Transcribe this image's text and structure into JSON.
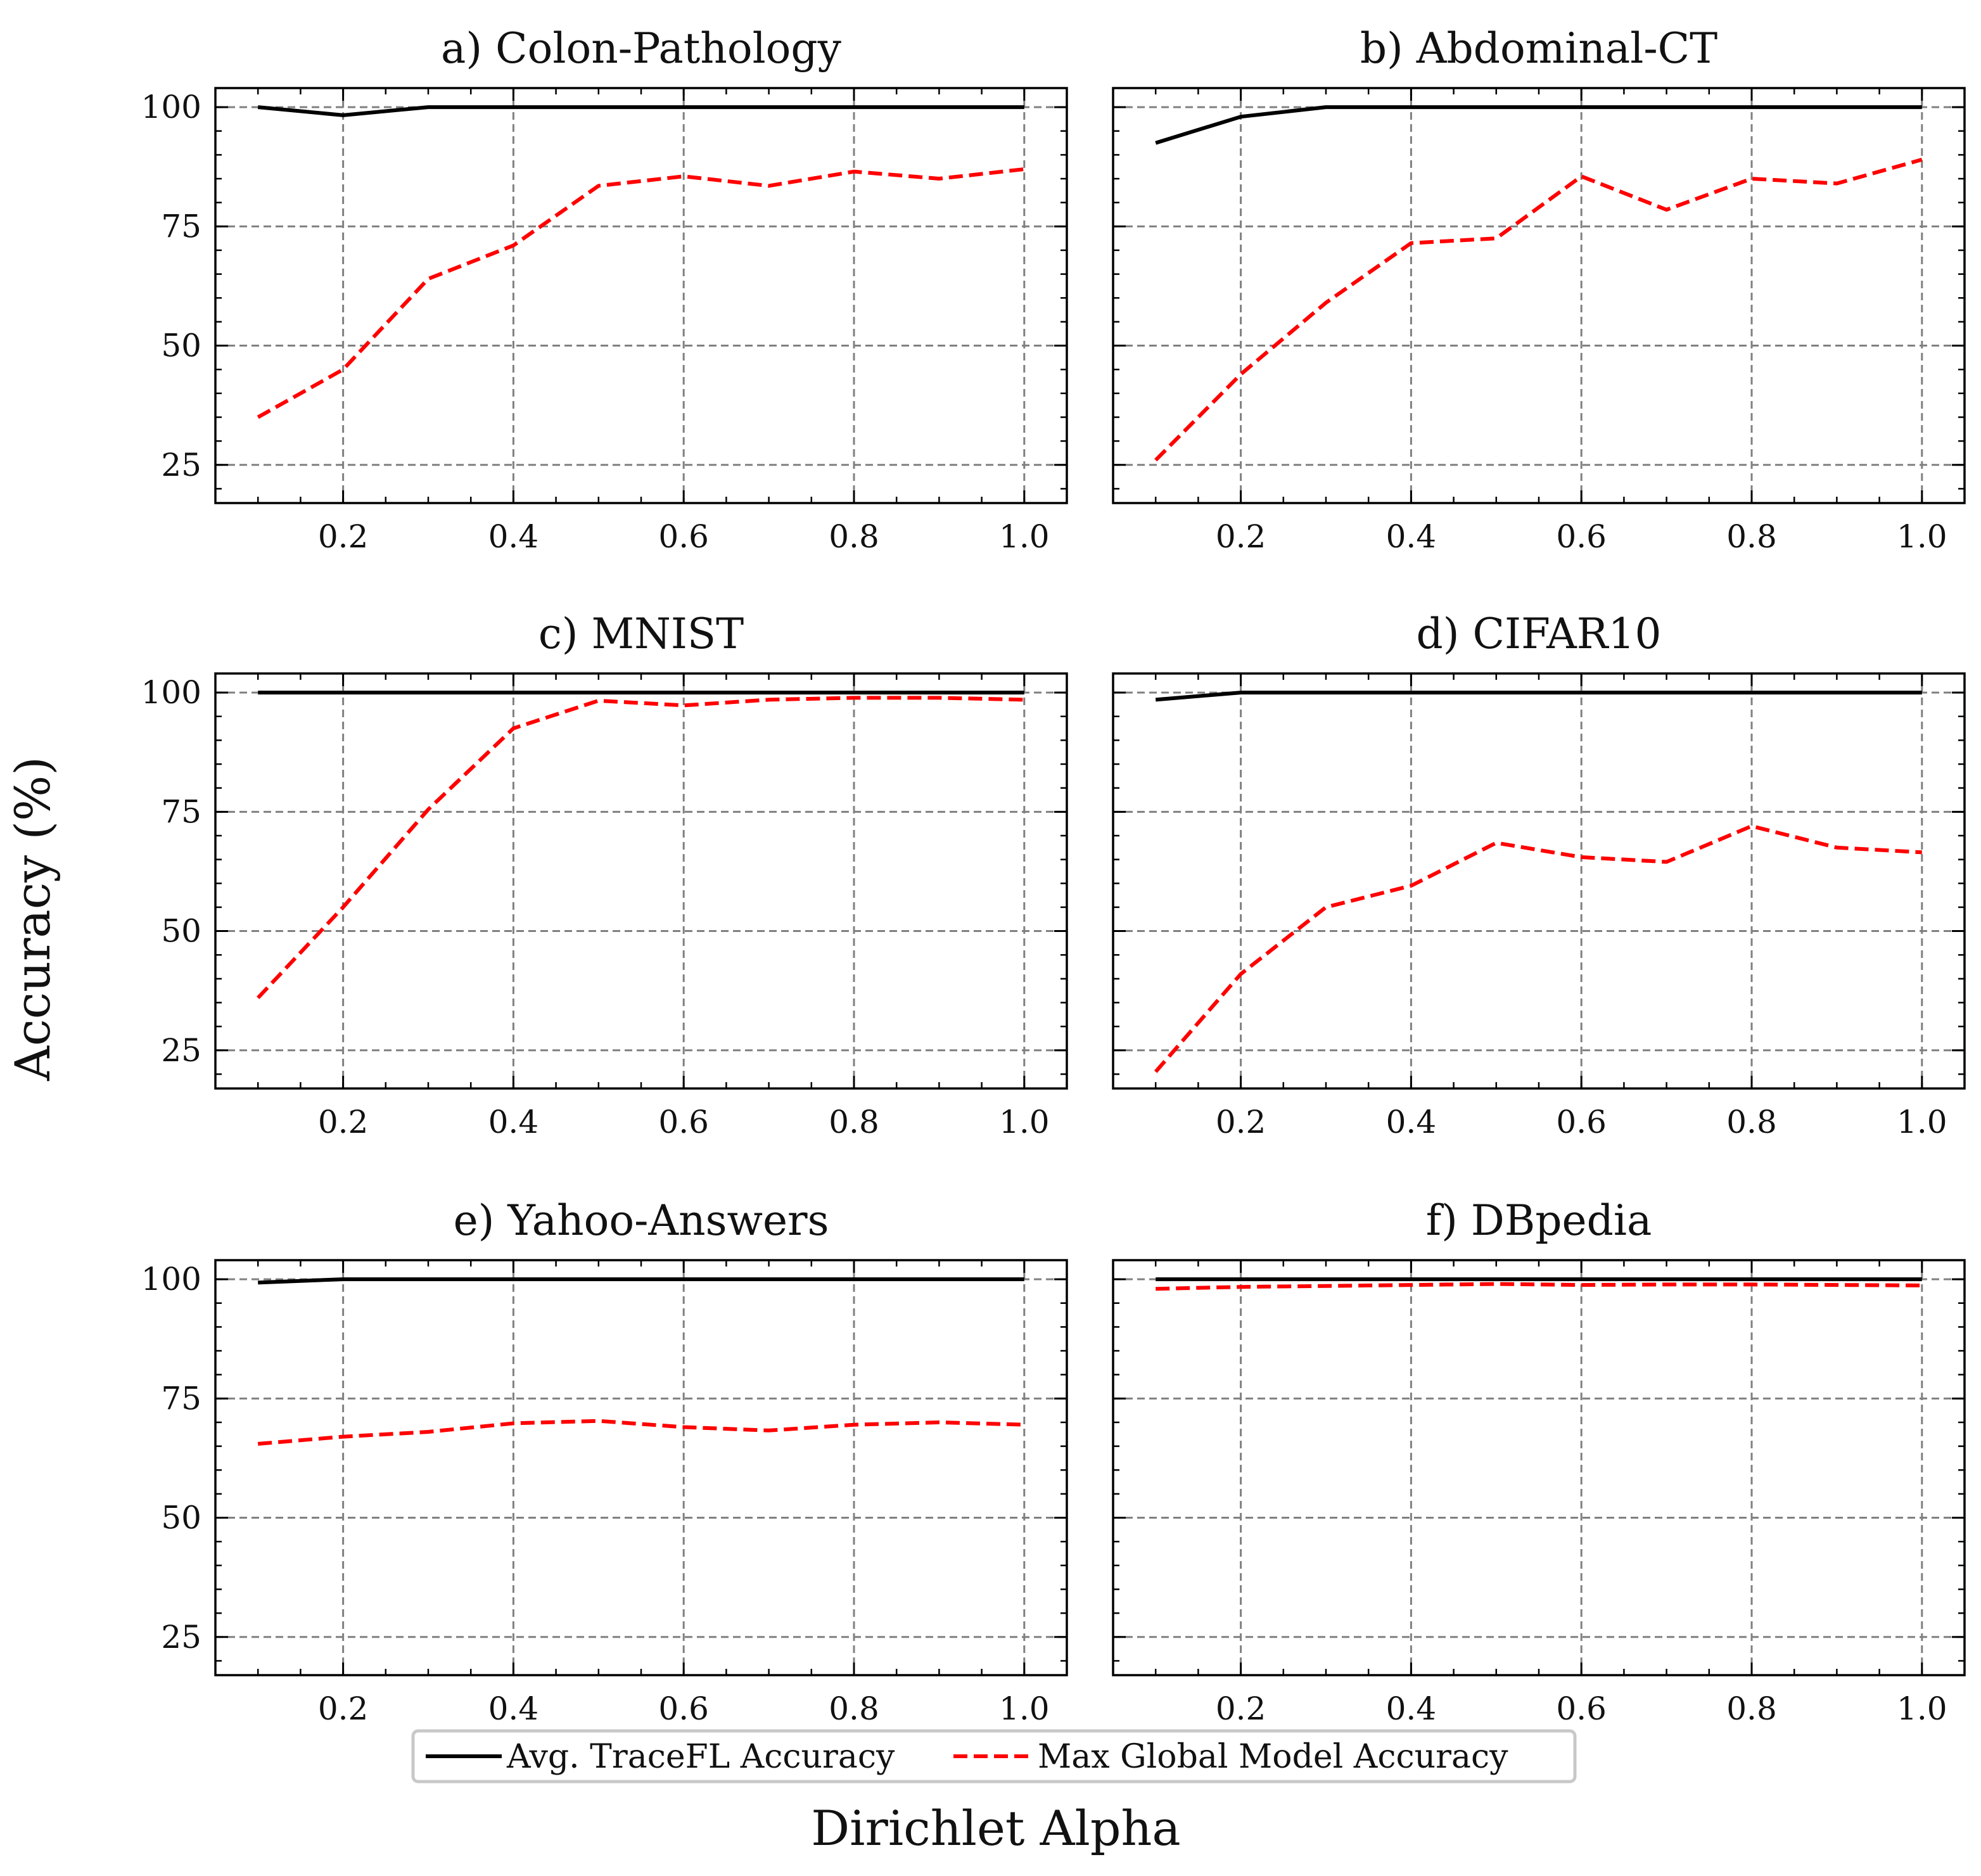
{
  "figure": {
    "xlabel": "Dirichlet Alpha",
    "ylabel": "Accuracy (%)"
  },
  "legend": {
    "placement": "bottom-center",
    "entries": [
      {
        "label": "Avg. TraceFL Accuracy",
        "color": "#000000",
        "style": "solid"
      },
      {
        "label": "Max Global Model Accuracy",
        "color": "#ff0000",
        "style": "dashed"
      }
    ]
  },
  "chart_data": [
    {
      "type": "line",
      "title": "a) Colon-Pathology",
      "x": [
        0.1,
        0.2,
        0.3,
        0.4,
        0.5,
        0.6,
        0.7,
        0.8,
        0.9,
        1.0
      ],
      "xticks": [
        "0.2",
        "0.4",
        "0.6",
        "0.8",
        "1.0"
      ],
      "yticks": [
        "25",
        "50",
        "75",
        "100"
      ],
      "xlim": [
        0.05,
        1.05
      ],
      "ylim": [
        17,
        104
      ],
      "grid": true,
      "series": [
        {
          "name": "Avg. TraceFL Accuracy",
          "values": [
            100,
            98.3,
            100,
            100,
            100,
            100,
            100,
            100,
            100,
            100
          ]
        },
        {
          "name": "Max Global Model Accuracy",
          "values": [
            35,
            45,
            64,
            71,
            83.5,
            85.5,
            83.5,
            86.5,
            85,
            87
          ]
        }
      ]
    },
    {
      "type": "line",
      "title": "b) Abdominal-CT",
      "x": [
        0.1,
        0.2,
        0.3,
        0.4,
        0.5,
        0.6,
        0.7,
        0.8,
        0.9,
        1.0
      ],
      "xticks": [
        "0.2",
        "0.4",
        "0.6",
        "0.8",
        "1.0"
      ],
      "yticks": [
        "25",
        "50",
        "75",
        "100"
      ],
      "xlim": [
        0.05,
        1.05
      ],
      "ylim": [
        17,
        104
      ],
      "grid": true,
      "series": [
        {
          "name": "Avg. TraceFL Accuracy",
          "values": [
            92.5,
            98,
            100,
            100,
            100,
            100,
            100,
            100,
            100,
            100
          ]
        },
        {
          "name": "Max Global Model Accuracy",
          "values": [
            26,
            44,
            59,
            71.5,
            72.5,
            85.5,
            78.5,
            85,
            84,
            89
          ]
        }
      ]
    },
    {
      "type": "line",
      "title": "c) MNIST",
      "x": [
        0.1,
        0.2,
        0.3,
        0.4,
        0.5,
        0.6,
        0.7,
        0.8,
        0.9,
        1.0
      ],
      "xticks": [
        "0.2",
        "0.4",
        "0.6",
        "0.8",
        "1.0"
      ],
      "yticks": [
        "25",
        "50",
        "75",
        "100"
      ],
      "xlim": [
        0.05,
        1.05
      ],
      "ylim": [
        17,
        104
      ],
      "grid": true,
      "series": [
        {
          "name": "Avg. TraceFL Accuracy",
          "values": [
            100,
            100,
            100,
            100,
            100,
            100,
            100,
            100,
            100,
            100
          ]
        },
        {
          "name": "Max Global Model Accuracy",
          "values": [
            36,
            55,
            75.5,
            92.5,
            98.3,
            97.3,
            98.5,
            98.9,
            98.9,
            98.5
          ]
        }
      ]
    },
    {
      "type": "line",
      "title": "d) CIFAR10",
      "x": [
        0.1,
        0.2,
        0.3,
        0.4,
        0.5,
        0.6,
        0.7,
        0.8,
        0.9,
        1.0
      ],
      "xticks": [
        "0.2",
        "0.4",
        "0.6",
        "0.8",
        "1.0"
      ],
      "yticks": [
        "25",
        "50",
        "75",
        "100"
      ],
      "xlim": [
        0.05,
        1.05
      ],
      "ylim": [
        17,
        104
      ],
      "grid": true,
      "series": [
        {
          "name": "Avg. TraceFL Accuracy",
          "values": [
            98.5,
            100,
            100,
            100,
            100,
            100,
            100,
            100,
            100,
            100
          ]
        },
        {
          "name": "Max Global Model Accuracy",
          "values": [
            20.5,
            41,
            55,
            59.5,
            68.5,
            65.5,
            64.5,
            72,
            67.5,
            66.5
          ]
        }
      ]
    },
    {
      "type": "line",
      "title": "e) Yahoo-Answers",
      "x": [
        0.1,
        0.2,
        0.3,
        0.4,
        0.5,
        0.6,
        0.7,
        0.8,
        0.9,
        1.0
      ],
      "xticks": [
        "0.2",
        "0.4",
        "0.6",
        "0.8",
        "1.0"
      ],
      "yticks": [
        "25",
        "50",
        "75",
        "100"
      ],
      "xlim": [
        0.05,
        1.05
      ],
      "ylim": [
        17,
        104
      ],
      "grid": true,
      "series": [
        {
          "name": "Avg. TraceFL Accuracy",
          "values": [
            99.3,
            100,
            100,
            100,
            100,
            100,
            100,
            100,
            100,
            100
          ]
        },
        {
          "name": "Max Global Model Accuracy",
          "values": [
            65.5,
            67,
            68,
            69.8,
            70.3,
            69,
            68.3,
            69.5,
            70,
            69.5
          ]
        }
      ]
    },
    {
      "type": "line",
      "title": "f) DBpedia",
      "x": [
        0.1,
        0.2,
        0.3,
        0.4,
        0.5,
        0.6,
        0.7,
        0.8,
        0.9,
        1.0
      ],
      "xticks": [
        "0.2",
        "0.4",
        "0.6",
        "0.8",
        "1.0"
      ],
      "yticks": [
        "25",
        "50",
        "75",
        "100"
      ],
      "xlim": [
        0.05,
        1.05
      ],
      "ylim": [
        17,
        104
      ],
      "grid": true,
      "series": [
        {
          "name": "Avg. TraceFL Accuracy",
          "values": [
            100,
            100,
            100,
            100,
            100,
            100,
            100,
            100,
            100,
            100
          ]
        },
        {
          "name": "Max Global Model Accuracy",
          "values": [
            98,
            98.4,
            98.6,
            98.8,
            99,
            98.8,
            98.9,
            98.9,
            98.8,
            98.7
          ]
        }
      ]
    }
  ]
}
